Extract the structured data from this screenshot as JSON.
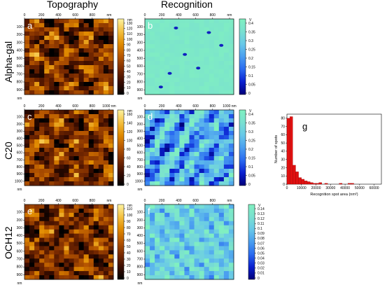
{
  "column_titles": [
    "Topography",
    "Recognition"
  ],
  "row_labels": [
    "Alpha-gal",
    "C20",
    "OCH12"
  ],
  "colors": {
    "topo": [
      "#000000",
      "#3a0c00",
      "#7a2a00",
      "#b55500",
      "#e08a00",
      "#f4c040",
      "#fdf3a0"
    ],
    "recog": [
      "#00007a",
      "#0a20d0",
      "#2a6af0",
      "#4a9ef0",
      "#68c8e8",
      "#7ae0d0",
      "#80f0c0"
    ],
    "background_recog": "#6fe6c9"
  },
  "chart_data": [
    {
      "type": "heatmap",
      "panel_letter": "a",
      "x_ticks": [
        "0",
        "200",
        "400",
        "600",
        "800",
        "nm"
      ],
      "y_ticks": [
        "100",
        "200",
        "300",
        "400",
        "500",
        "600",
        "700",
        "800",
        "900"
      ],
      "corner_label": "nm",
      "colorbar": {
        "unit": "nm",
        "ticks": [
          "130",
          "120",
          "110",
          "100",
          "90",
          "80",
          "70",
          "60",
          "50",
          "40",
          "30",
          "20",
          "10",
          "0"
        ],
        "range": [
          0,
          130
        ],
        "colormap": "topo"
      },
      "pattern": "topo"
    },
    {
      "type": "heatmap",
      "panel_letter": "b",
      "x_ticks": [
        "0",
        "200",
        "400",
        "600",
        "800",
        "nm"
      ],
      "y_ticks": [
        "100",
        "200",
        "300",
        "400",
        "500",
        "600",
        "700",
        "800",
        "900"
      ],
      "corner_label": "nm",
      "colorbar": {
        "unit": "V",
        "ticks": [
          "0.4",
          "0.35",
          "0.3",
          "0.25",
          "0.2",
          "0.15",
          "0.1",
          "0.05",
          "0"
        ],
        "range": [
          0,
          0.4
        ],
        "colormap": "recog"
      },
      "pattern": "sparse"
    },
    {
      "type": "heatmap",
      "panel_letter": "c",
      "x_ticks": [
        "0",
        "200",
        "400",
        "600",
        "800",
        "1000 nm"
      ],
      "y_ticks": [
        "100",
        "200",
        "300",
        "400",
        "500",
        "600",
        "700",
        "800",
        "900",
        "1000"
      ],
      "corner_label": "nm",
      "colorbar": {
        "unit": "nm",
        "ticks": [
          "160",
          "140",
          "120",
          "100",
          "80",
          "60",
          "40",
          "20",
          "0"
        ],
        "range": [
          0,
          160
        ],
        "colormap": "topo"
      },
      "pattern": "topo"
    },
    {
      "type": "heatmap",
      "panel_letter": "d",
      "x_ticks": [
        "0",
        "200",
        "400",
        "600",
        "800",
        "1000 nm"
      ],
      "y_ticks": [
        "100",
        "200",
        "300",
        "400",
        "500",
        "600",
        "700",
        "800",
        "900",
        "1000"
      ],
      "corner_label": "nm",
      "colorbar": {
        "unit": "V",
        "ticks": [
          "0.4",
          "0.35",
          "0.3",
          "0.25",
          "0.2",
          "0.15",
          "0.1",
          "0.05",
          "0"
        ],
        "range": [
          0,
          0.4
        ],
        "colormap": "recog"
      },
      "pattern": "dense"
    },
    {
      "type": "heatmap",
      "panel_letter": "e",
      "x_ticks": [
        "0",
        "200",
        "400",
        "600",
        "800",
        "nm"
      ],
      "y_ticks": [
        "100",
        "200",
        "300",
        "400",
        "500",
        "600",
        "700",
        "800",
        "900"
      ],
      "corner_label": "nm",
      "colorbar": {
        "unit": "nm",
        "ticks": [
          "110",
          "100",
          "90",
          "80",
          "70",
          "60",
          "50",
          "40",
          "30",
          "20",
          "10",
          "0"
        ],
        "range": [
          0,
          110
        ],
        "colormap": "topo"
      },
      "pattern": "topo"
    },
    {
      "type": "heatmap",
      "panel_letter": "f",
      "x_ticks": [
        "0",
        "200",
        "400",
        "600",
        "800",
        "nm"
      ],
      "y_ticks": [
        "100",
        "200",
        "300",
        "400",
        "500",
        "600",
        "700",
        "800",
        "900"
      ],
      "corner_label": "nm",
      "colorbar": {
        "unit": "V",
        "ticks": [
          "0.14",
          "0.13",
          "0.12",
          "0.11",
          "0.1",
          "0.09",
          "0.08",
          "0.07",
          "0.06",
          "0.05",
          "0.04",
          "0.03",
          "0.02",
          "0.01",
          "0"
        ],
        "range": [
          0,
          0.14
        ],
        "colormap": "recog"
      },
      "pattern": "medium"
    },
    {
      "type": "bar",
      "panel_letter": "g",
      "xlabel": "Recognition spot area (nm²)",
      "ylabel": "Number of spots",
      "x_ticks": [
        "0",
        "10000",
        "20000",
        "30000",
        "40000",
        "50000",
        "60000"
      ],
      "y_ticks": [
        "0",
        "10",
        "20",
        "30",
        "40",
        "50",
        "60",
        "70",
        "80"
      ],
      "xlim": [
        0,
        65000
      ],
      "ylim": [
        0,
        85
      ],
      "bin_width": 2000,
      "x": [
        0,
        2000,
        4000,
        6000,
        8000,
        10000,
        12000,
        14000,
        16000,
        18000,
        20000,
        22000,
        24000,
        26000,
        28000,
        30000,
        32000,
        34000,
        36000,
        38000,
        40000,
        42000,
        44000
      ],
      "values": [
        80,
        82,
        23,
        15,
        8,
        6,
        4,
        3,
        2,
        1,
        1,
        2,
        0,
        1,
        0,
        0,
        0,
        0,
        1,
        0,
        0,
        1,
        1
      ],
      "bar_color": "#e01010"
    }
  ]
}
